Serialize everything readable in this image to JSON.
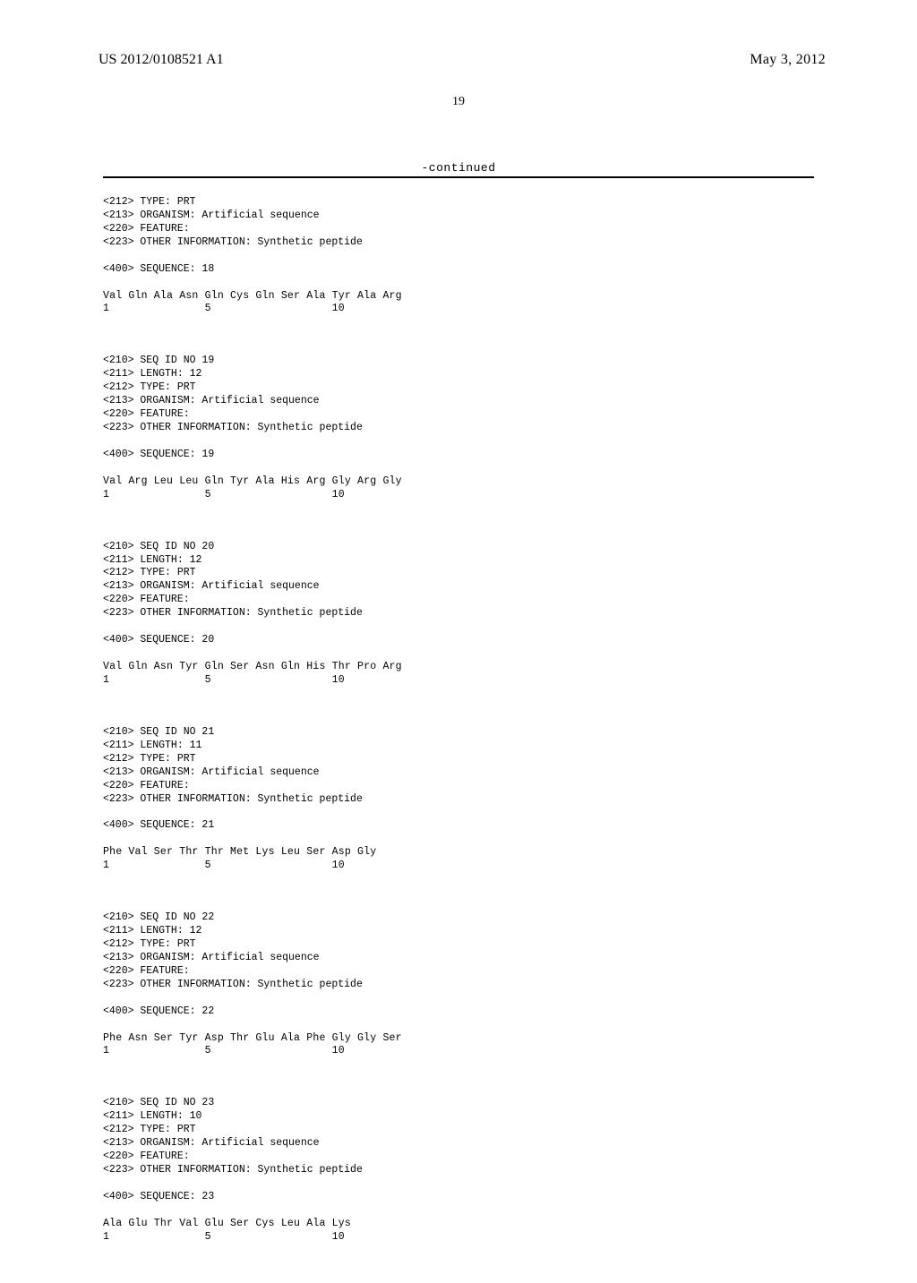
{
  "header": {
    "publication_number": "US 2012/0108521 A1",
    "publication_date": "May 3, 2012"
  },
  "page_number": "19",
  "continued_label": "-continued",
  "sequences": [
    {
      "header_lines": [
        "<212> TYPE: PRT",
        "<213> ORGANISM: Artificial sequence",
        "<220> FEATURE:",
        "<223> OTHER INFORMATION: Synthetic peptide"
      ],
      "seq_label": "<400> SEQUENCE: 18",
      "residues": "Val Gln Ala Asn Gln Cys Gln Ser Ala Tyr Ala Arg",
      "positions": "1               5                   10"
    },
    {
      "header_lines": [
        "<210> SEQ ID NO 19",
        "<211> LENGTH: 12",
        "<212> TYPE: PRT",
        "<213> ORGANISM: Artificial sequence",
        "<220> FEATURE:",
        "<223> OTHER INFORMATION: Synthetic peptide"
      ],
      "seq_label": "<400> SEQUENCE: 19",
      "residues": "Val Arg Leu Leu Gln Tyr Ala His Arg Gly Arg Gly",
      "positions": "1               5                   10"
    },
    {
      "header_lines": [
        "<210> SEQ ID NO 20",
        "<211> LENGTH: 12",
        "<212> TYPE: PRT",
        "<213> ORGANISM: Artificial sequence",
        "<220> FEATURE:",
        "<223> OTHER INFORMATION: Synthetic peptide"
      ],
      "seq_label": "<400> SEQUENCE: 20",
      "residues": "Val Gln Asn Tyr Gln Ser Asn Gln His Thr Pro Arg",
      "positions": "1               5                   10"
    },
    {
      "header_lines": [
        "<210> SEQ ID NO 21",
        "<211> LENGTH: 11",
        "<212> TYPE: PRT",
        "<213> ORGANISM: Artificial sequence",
        "<220> FEATURE:",
        "<223> OTHER INFORMATION: Synthetic peptide"
      ],
      "seq_label": "<400> SEQUENCE: 21",
      "residues": "Phe Val Ser Thr Thr Met Lys Leu Ser Asp Gly",
      "positions": "1               5                   10"
    },
    {
      "header_lines": [
        "<210> SEQ ID NO 22",
        "<211> LENGTH: 12",
        "<212> TYPE: PRT",
        "<213> ORGANISM: Artificial sequence",
        "<220> FEATURE:",
        "<223> OTHER INFORMATION: Synthetic peptide"
      ],
      "seq_label": "<400> SEQUENCE: 22",
      "residues": "Phe Asn Ser Tyr Asp Thr Glu Ala Phe Gly Gly Ser",
      "positions": "1               5                   10"
    },
    {
      "header_lines": [
        "<210> SEQ ID NO 23",
        "<211> LENGTH: 10",
        "<212> TYPE: PRT",
        "<213> ORGANISM: Artificial sequence",
        "<220> FEATURE:",
        "<223> OTHER INFORMATION: Synthetic peptide"
      ],
      "seq_label": "<400> SEQUENCE: 23",
      "residues": "Ala Glu Thr Val Glu Ser Cys Leu Ala Lys",
      "positions": "1               5                   10"
    }
  ]
}
